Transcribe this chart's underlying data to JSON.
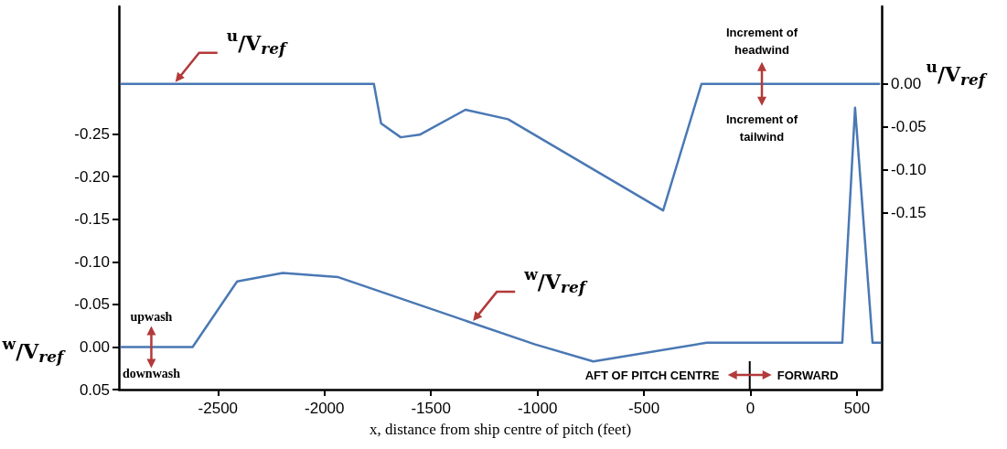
{
  "chart_data": {
    "type": "line",
    "xlabel": "x, distance from ship centre of pitch (feet)",
    "ylabel": "$^{w}$/V$_{ref}$",
    "y2label": "$^{u}$/V$_{ref}$",
    "annotations": [
      "Increment of headwind",
      "Increment of tailwind",
      "upwash",
      "downwash",
      "AFT OF PITCH CENTRE",
      "FORWARD"
    ],
    "series": [
      {
        "name": "$^{u}$/V$_{ref}$",
        "color": "#4a78b4",
        "axis": "y2",
        "x": [
          -2953,
          -1768,
          -1734,
          -1642,
          -1553,
          -1338,
          -1138,
          -410,
          -230,
          604
        ],
        "values": [
          0,
          0,
          -0.046,
          -0.062,
          -0.059,
          -0.03,
          -0.041,
          -0.147,
          0,
          0
        ]
      },
      {
        "name": "$^{w}$/V$_{ref}$",
        "color": "#4a78b4",
        "x": [
          -2953,
          -2619,
          -2410,
          -2196,
          -1935,
          -1011,
          -738,
          -205,
          431,
          491,
          573,
          608
        ],
        "values": [
          0,
          0,
          -0.077,
          -0.087,
          -0.082,
          -0.003,
          0.017,
          -0.005,
          -0.005,
          -0.281,
          -0.005,
          -0.005
        ]
      }
    ],
    "xlim": [
      -2965,
      616
    ],
    "xticks": [
      -2500,
      -2000,
      -1500,
      -1000,
      -500,
      0,
      500
    ],
    "ylim": [
      0.05,
      -0.4
    ],
    "yticks": [
      {
        "value": 0.05,
        "label": "0.05"
      },
      {
        "value": 0,
        "label": "0.00"
      },
      {
        "value": -0.05,
        "label": "-0.05"
      },
      {
        "value": -0.1,
        "label": "-0.10"
      },
      {
        "value": -0.15,
        "label": "-0.15"
      },
      {
        "value": -0.2,
        "label": "-0.20"
      },
      {
        "value": -0.25,
        "label": "-0.25"
      }
    ],
    "y2lim": [
      -0.355,
      0.09
    ],
    "y2ticks": [
      {
        "value": 0,
        "label": "0.00"
      },
      {
        "value": -0.05,
        "label": "-0.05"
      },
      {
        "value": -0.1,
        "label": "-0.10"
      },
      {
        "value": -0.15,
        "label": "-0.15"
      }
    ],
    "grid": false,
    "marker": "none",
    "line_style": "solid"
  }
}
